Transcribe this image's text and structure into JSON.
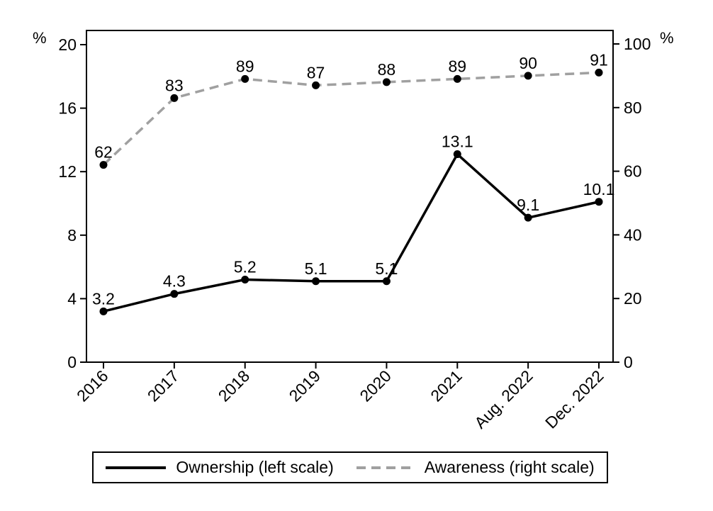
{
  "chart_data": {
    "type": "line",
    "title": "",
    "categories": [
      "2016",
      "2017",
      "2018",
      "2019",
      "2020",
      "2021",
      "Aug. 2022",
      "Dec. 2022"
    ],
    "series": [
      {
        "name": "Ownership",
        "legend_label": "Ownership (left scale)",
        "axis": "left",
        "values": [
          3.2,
          4.3,
          5.2,
          5.1,
          5.1,
          13.1,
          9.1,
          10.1
        ],
        "labels": [
          "3.2",
          "4.3",
          "5.2",
          "5.1",
          "5.1",
          "13.1",
          "9.1",
          "10.1"
        ],
        "line_style": "solid",
        "color": "#000000",
        "marker_color": "#000000"
      },
      {
        "name": "Awareness",
        "legend_label": "Awareness (right scale)",
        "axis": "right",
        "values": [
          62,
          83,
          89,
          87,
          88,
          89,
          90,
          91
        ],
        "labels": [
          "62",
          "83",
          "89",
          "87",
          "88",
          "89",
          "90",
          "91"
        ],
        "line_style": "dashed",
        "color": "#a0a0a0",
        "marker_color": "#000000"
      }
    ],
    "left_axis": {
      "unit": "%",
      "ticks": [
        0,
        4,
        8,
        12,
        16,
        20
      ],
      "range": [
        0,
        20
      ]
    },
    "right_axis": {
      "unit": "%",
      "ticks": [
        0,
        20,
        40,
        60,
        80,
        100
      ],
      "range": [
        0,
        100
      ]
    },
    "grid": false,
    "legend_position": "bottom",
    "colors": {
      "axis": "#000000",
      "text": "#000000",
      "background": "#ffffff"
    }
  }
}
